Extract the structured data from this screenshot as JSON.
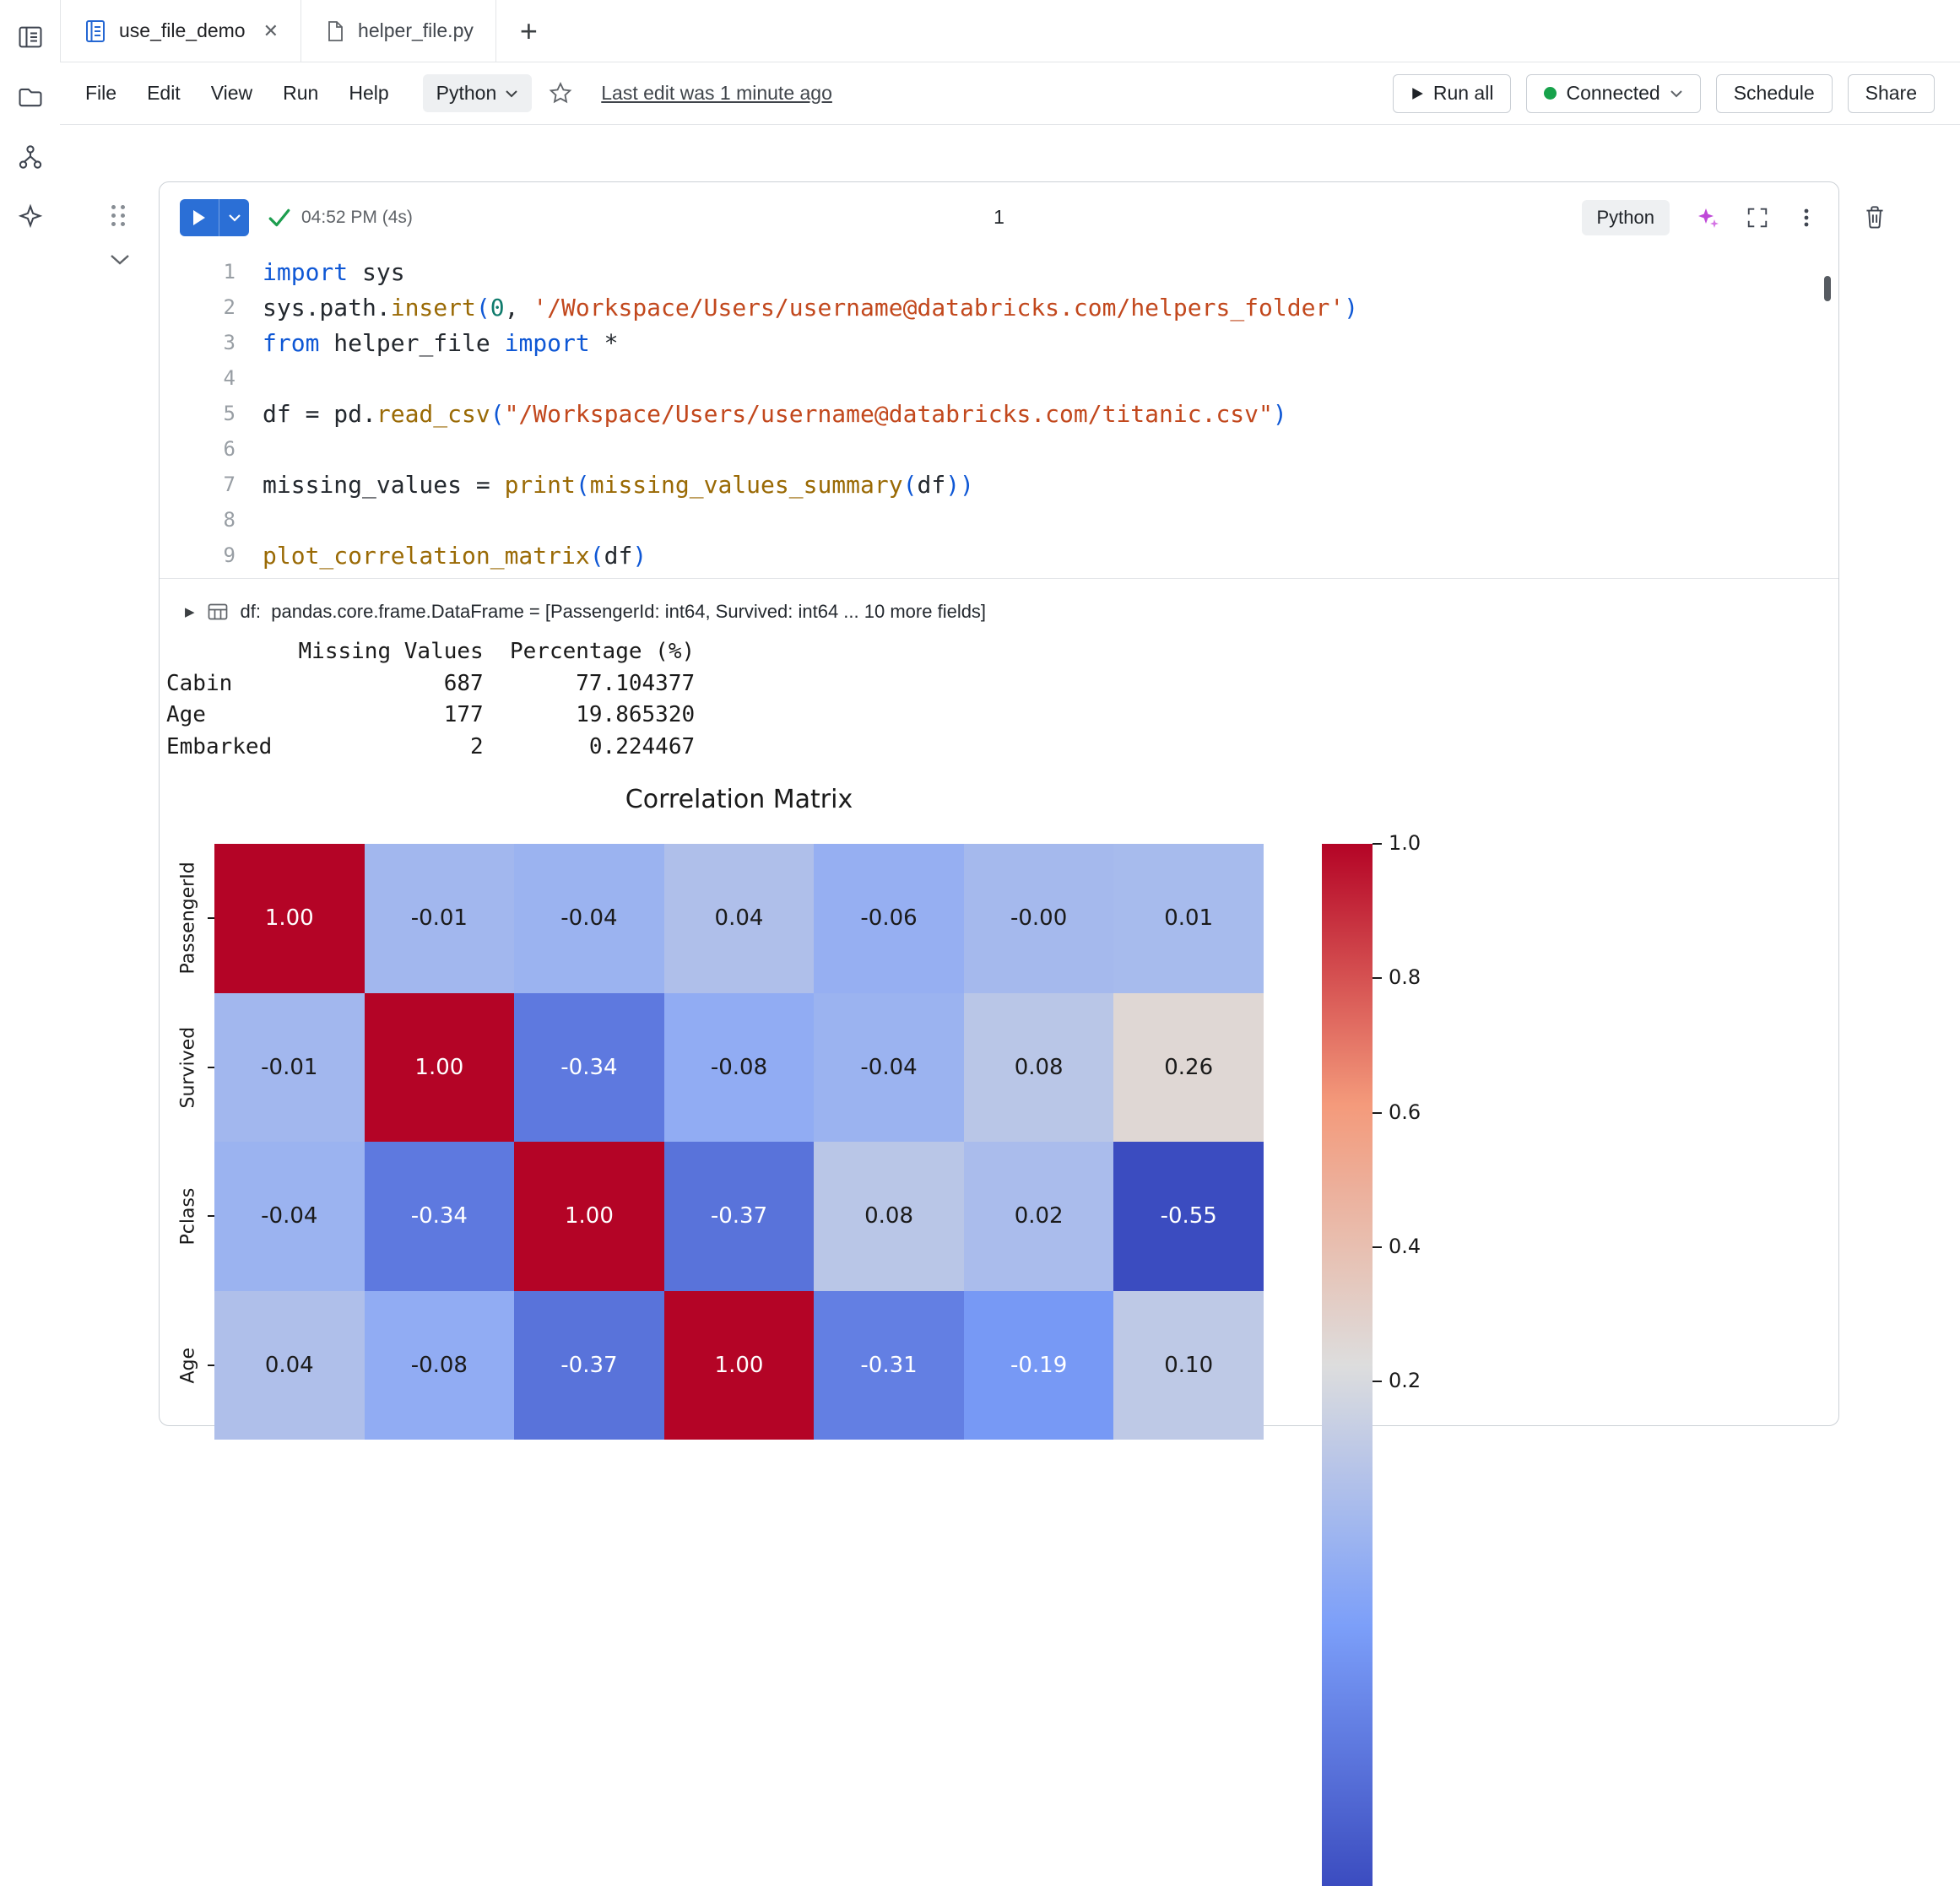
{
  "tabs": {
    "tab1": "use_file_demo",
    "tab2": "helper_file.py",
    "new_tab": "+",
    "close": "✕"
  },
  "menu": {
    "file": "File",
    "edit": "Edit",
    "view": "View",
    "run": "Run",
    "help": "Help",
    "language": "Python",
    "last_edit": "Last edit was 1 minute ago"
  },
  "header_actions": {
    "run_all": "Run all",
    "connected": "Connected",
    "schedule": "Schedule",
    "share": "Share"
  },
  "cell": {
    "status_time": "04:52 PM (4s)",
    "cell_number": "1",
    "language": "Python",
    "lines": [
      {
        "n": "1",
        "tokens": [
          [
            "kw",
            "import"
          ],
          [
            "pl",
            " sys"
          ]
        ]
      },
      {
        "n": "2",
        "tokens": [
          [
            "pl",
            "sys.path."
          ],
          [
            "fn",
            "insert"
          ],
          [
            "pa",
            "("
          ],
          [
            "nu",
            "0"
          ],
          [
            "pl",
            ", "
          ],
          [
            "st",
            "'/Workspace/Users/username@databricks.com/helpers_folder'"
          ],
          [
            "pa",
            ")"
          ]
        ]
      },
      {
        "n": "3",
        "tokens": [
          [
            "kw",
            "from"
          ],
          [
            "pl",
            " helper_file "
          ],
          [
            "kw",
            "import"
          ],
          [
            "pl",
            " *"
          ]
        ]
      },
      {
        "n": "4",
        "tokens": []
      },
      {
        "n": "5",
        "tokens": [
          [
            "pl",
            "df = pd."
          ],
          [
            "fn",
            "read_csv"
          ],
          [
            "pa",
            "("
          ],
          [
            "st",
            "\"/Workspace/Users/username@databricks.com/titanic.csv\""
          ],
          [
            "pa",
            ")"
          ]
        ]
      },
      {
        "n": "6",
        "tokens": []
      },
      {
        "n": "7",
        "tokens": [
          [
            "pl",
            "missing_values = "
          ],
          [
            "fn",
            "print"
          ],
          [
            "pa",
            "("
          ],
          [
            "fn",
            "missing_values_summary"
          ],
          [
            "pa",
            "("
          ],
          [
            "pl",
            "df"
          ],
          [
            "pa",
            "))"
          ]
        ]
      },
      {
        "n": "8",
        "tokens": []
      },
      {
        "n": "9",
        "tokens": [
          [
            "fn",
            "plot_correlation_matrix"
          ],
          [
            "pa",
            "("
          ],
          [
            "pl",
            "df"
          ],
          [
            "pa",
            ")"
          ]
        ]
      }
    ]
  },
  "output": {
    "df_summary": "df:  pandas.core.frame.DataFrame = [PassengerId: int64, Survived: int64 ... 10 more fields]",
    "text_lines": [
      "          Missing Values  Percentage (%)",
      "Cabin                687       77.104377",
      "Age                  177       19.865320",
      "Embarked               2        0.224467"
    ]
  },
  "chart_data": {
    "type": "heatmap",
    "title": "Correlation Matrix",
    "row_labels": [
      "PassengerId",
      "Survived",
      "Pclass",
      "Age"
    ],
    "values_display": [
      [
        "1.00",
        "-0.01",
        "-0.04",
        "0.04",
        "-0.06",
        "-0.00",
        "0.01"
      ],
      [
        "-0.01",
        "1.00",
        "-0.34",
        "-0.08",
        "-0.04",
        "0.08",
        "0.26"
      ],
      [
        "-0.04",
        "-0.34",
        "1.00",
        "-0.37",
        "0.08",
        "0.02",
        "-0.55"
      ],
      [
        "0.04",
        "-0.08",
        "-0.37",
        "1.00",
        "-0.31",
        "-0.19",
        "0.10"
      ]
    ],
    "colormap": "coolwarm",
    "vmin": -0.55,
    "vmax": 1.0,
    "colorbar_ticks": [
      1.0,
      0.8,
      0.6,
      0.4,
      0.2
    ],
    "legend_position": "right-colorbar",
    "grid": false
  }
}
